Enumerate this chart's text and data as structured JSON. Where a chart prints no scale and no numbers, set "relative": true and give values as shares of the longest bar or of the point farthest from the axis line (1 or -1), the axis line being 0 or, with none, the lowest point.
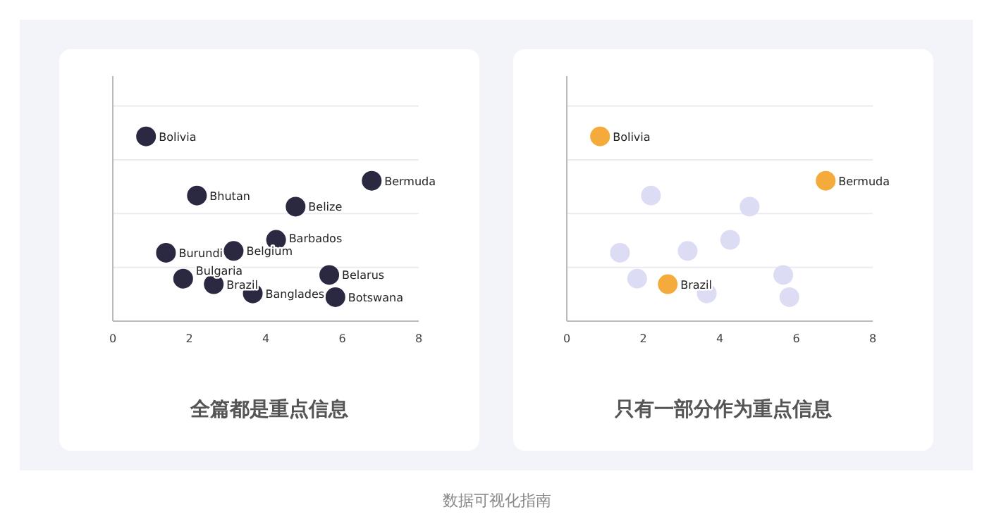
{
  "chart_data": [
    {
      "type": "scatter",
      "title": "全篇都是重点信息",
      "relative": true,
      "marker": "circle",
      "grid": "y",
      "tick_labels": "x",
      "xlim": [
        0,
        8
      ],
      "xticks": [
        0,
        2,
        4,
        6,
        8
      ],
      "series": [
        {
          "color": "#2b2942",
          "x": [
            0.87,
            2.2,
            6.77,
            4.78,
            4.27,
            1.39,
            3.16,
            5.66,
            1.84,
            2.64,
            3.66,
            5.82
          ],
          "values": [
            1.0,
            0.68,
            0.76,
            0.62,
            0.44,
            0.37,
            0.38,
            0.25,
            0.23,
            0.2,
            0.15,
            0.13
          ]
        }
      ],
      "annotations": [
        {
          "text": "Bolivia",
          "x": 0.87,
          "y": 1.0
        },
        {
          "text": "Bhutan",
          "x": 2.2,
          "y": 0.68
        },
        {
          "text": "Bermuda",
          "x": 6.77,
          "y": 0.76
        },
        {
          "text": "Belize",
          "x": 4.78,
          "y": 0.62
        },
        {
          "text": "Barbados",
          "x": 4.27,
          "y": 0.44
        },
        {
          "text": "Burundi",
          "x": 1.39,
          "y": 0.37
        },
        {
          "text": "Belgium",
          "x": 3.16,
          "y": 0.38
        },
        {
          "text": "Belarus",
          "x": 5.66,
          "y": 0.25
        },
        {
          "text": "Bulgaria",
          "x": 1.84,
          "y": 0.23
        },
        {
          "text": "Brazil",
          "x": 2.64,
          "y": 0.2
        },
        {
          "text": "Banglades",
          "x": 3.66,
          "y": 0.15
        },
        {
          "text": "Botswana",
          "x": 5.82,
          "y": 0.13
        },
        "数据可视化指南"
      ]
    },
    {
      "type": "scatter",
      "title": "只有一部分作为重点信息",
      "relative": true,
      "marker": "circle",
      "grid": "y",
      "tick_labels": "x",
      "xlim": [
        0,
        8
      ],
      "xticks": [
        0,
        2,
        4,
        6,
        8
      ],
      "series": [
        {
          "color": "#dddcf5",
          "x": [
            2.2,
            4.78,
            4.27,
            1.39,
            3.16,
            5.66,
            1.84,
            3.66,
            5.82
          ],
          "values": [
            0.68,
            0.62,
            0.44,
            0.37,
            0.38,
            0.25,
            0.23,
            0.15,
            0.13
          ]
        },
        {
          "color": "#f5ab3c",
          "x": [
            0.87,
            6.77,
            2.64
          ],
          "values": [
            1.0,
            0.76,
            0.2
          ]
        }
      ],
      "annotations": [
        {
          "text": "Bolivia",
          "x": 0.87,
          "y": 1.0
        },
        {
          "text": "Bermuda",
          "x": 6.77,
          "y": 0.76
        },
        {
          "text": "Brazil",
          "x": 2.64,
          "y": 0.2
        }
      ]
    }
  ]
}
